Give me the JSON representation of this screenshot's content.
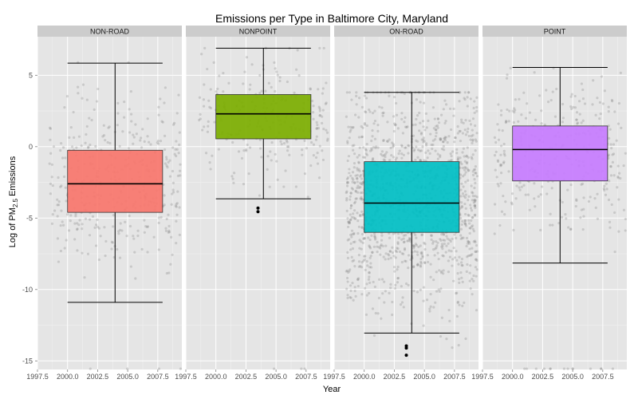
{
  "chart_data": {
    "type": "boxplot",
    "title": "Emissions per Type in Baltimore City, Maryland",
    "xlabel": "Year",
    "ylabel": {
      "prefix": "Log of PM",
      "subscript": "2.5",
      "suffix": " Emissions"
    },
    "xlim": [
      1997.5,
      2009.5
    ],
    "ylim": [
      -15.6,
      7.7
    ],
    "x_ticks": [
      "1997.5",
      "2000.0",
      "2002.5",
      "2005.0",
      "2007.5"
    ],
    "x_tick_values": [
      1997.5,
      2000.0,
      2002.5,
      2005.0,
      2007.5
    ],
    "y_ticks": [
      "5",
      "0",
      "-5",
      "-10",
      "-15"
    ],
    "y_tick_values": [
      5,
      0,
      -5,
      -10,
      -15
    ],
    "grid": true,
    "panel_background": "#e5e5e5",
    "strip_background": "#cccccc",
    "jitter_color": "#7f7f7f",
    "panels": [
      {
        "name": "NON-ROAD",
        "fill": "#f8766d",
        "box": {
          "x_from": 2000.0,
          "x_to": 2007.9,
          "whisker_low": -10.9,
          "q1": -4.6,
          "median": -2.6,
          "q3": -0.25,
          "whisker_high": 5.85
        },
        "outliers": [],
        "points": {
          "count": 420,
          "x_range": [
            1998.5,
            2009.4
          ],
          "y_min": -11.0,
          "y_max": 5.9,
          "center": -2.3,
          "spread": 3.0,
          "floor": -15.6,
          "floor_share": 0.01
        }
      },
      {
        "name": "NONPOINT",
        "fill": "#7cae00",
        "box": {
          "x_from": 2000.0,
          "x_to": 2007.9,
          "whisker_low": -3.65,
          "q1": 0.55,
          "median": 2.3,
          "q3": 3.65,
          "whisker_high": 6.9
        },
        "outliers": [
          {
            "x": 2003.5,
            "y": -4.3
          },
          {
            "x": 2003.5,
            "y": -4.55
          }
        ],
        "points": {
          "count": 260,
          "x_range": [
            1998.5,
            2009.4
          ],
          "y_min": -3.8,
          "y_max": 6.9,
          "center": 2.2,
          "spread": 2.2,
          "floor": -15.6,
          "floor_share": 0.03
        }
      },
      {
        "name": "ON-ROAD",
        "fill": "#00bfc4",
        "box": {
          "x_from": 2000.0,
          "x_to": 2007.9,
          "whisker_low": -13.05,
          "q1": -6.0,
          "median": -3.95,
          "q3": -1.05,
          "whisker_high": 3.8
        },
        "outliers": [
          {
            "x": 2003.5,
            "y": -13.95
          },
          {
            "x": 2003.5,
            "y": -14.1
          },
          {
            "x": 2003.5,
            "y": -14.6
          }
        ],
        "points": {
          "count": 1400,
          "x_range": [
            1998.5,
            2009.4
          ],
          "y_min": -14.6,
          "y_max": 3.8,
          "center": -3.7,
          "spread": 3.6,
          "floor": -15.6,
          "floor_share": 0.0
        }
      },
      {
        "name": "POINT",
        "fill": "#c77cff",
        "box": {
          "x_from": 2000.0,
          "x_to": 2007.9,
          "whisker_low": -8.15,
          "q1": -2.4,
          "median": -0.2,
          "q3": 1.45,
          "whisker_high": 5.55
        },
        "outliers": [],
        "points": {
          "count": 360,
          "x_range": [
            1998.5,
            2009.4
          ],
          "y_min": -8.2,
          "y_max": 5.5,
          "center": -0.5,
          "spread": 2.6,
          "floor": -15.6,
          "floor_share": 0.05
        }
      }
    ]
  }
}
